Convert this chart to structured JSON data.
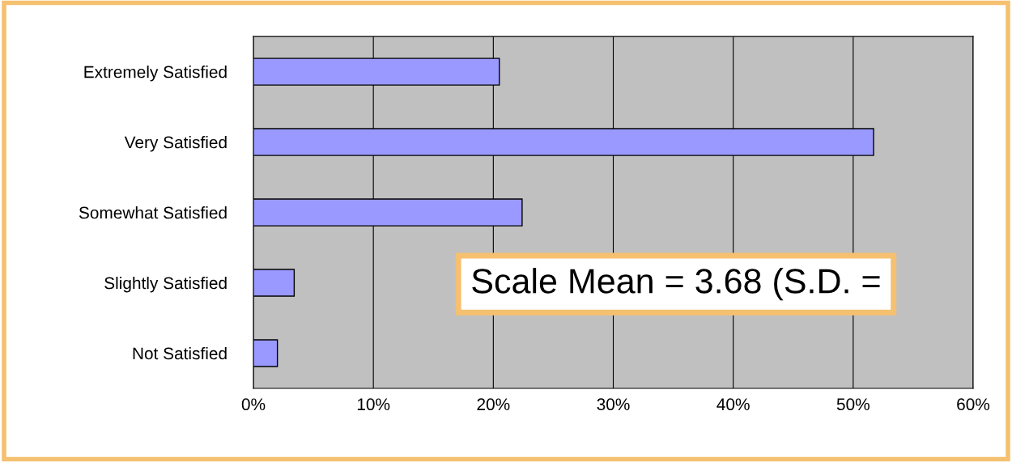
{
  "chart_data": {
    "type": "bar",
    "orientation": "horizontal",
    "categories": [
      "Extremely Satisfied",
      "Very Satisfied",
      "Somewhat Satisfied",
      "Slightly Satisfied",
      "Not Satisfied"
    ],
    "values": [
      20.5,
      51.7,
      22.4,
      3.4,
      2.0
    ],
    "color": "#9999ff",
    "xlim": [
      0,
      60
    ],
    "xticks": [
      {
        "value": 0,
        "label": "0%"
      },
      {
        "value": 10,
        "label": "10%"
      },
      {
        "value": 20,
        "label": "20%"
      },
      {
        "value": 30,
        "label": "30%"
      },
      {
        "value": 40,
        "label": "40%"
      },
      {
        "value": 50,
        "label": "50%"
      },
      {
        "value": 60,
        "label": "60%"
      }
    ],
    "grid": "x",
    "annotations": [
      "Scale Mean = 3.68 (S.D. ="
    ]
  }
}
